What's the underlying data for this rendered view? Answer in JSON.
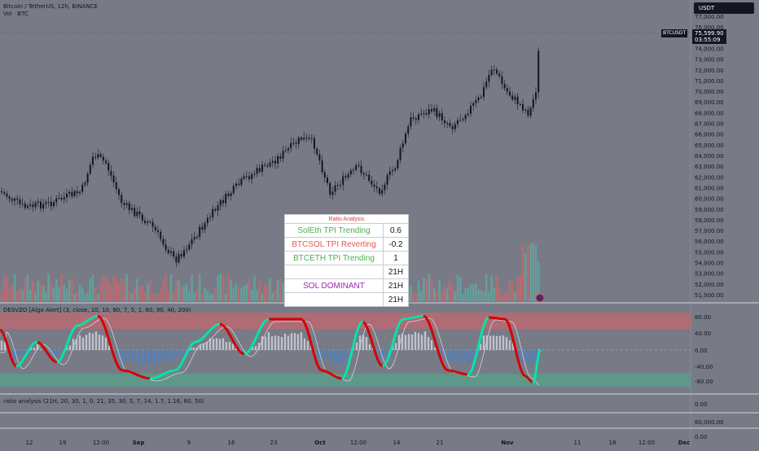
{
  "symbol_title": "Bitcoin / TetherUS, 12h, BINANCE",
  "volume_title": "Vol · BTC",
  "currency_button": "USDT",
  "price_tag": {
    "symbol": "BTCUSDT",
    "price": "75,599.90",
    "countdown": "03:55:09"
  },
  "price_axis": [
    "77,000.00",
    "76,000.00",
    "74,000.00",
    "73,000.00",
    "72,000.00",
    "71,000.00",
    "70,000.00",
    "69,000.00",
    "68,000.00",
    "67,000.00",
    "66,000.00",
    "65,000.00",
    "64,000.00",
    "63,000.00",
    "62,000.00",
    "61,000.00",
    "60,000.00",
    "59,000.00",
    "58,000.00",
    "57,000.00",
    "56,000.00",
    "55,000.00",
    "54,000.00",
    "53,000.00",
    "52,000.00",
    "51,000.00"
  ],
  "oscillator_title": "DESVZO [Algo Alert] (3, close, 10, 10, 80, 7, 5, 1, 60, 90, 40, 200)",
  "oscillator_axis": [
    "80.00",
    "40.00",
    "0.00",
    "-40.00",
    "-80.00"
  ],
  "ratio_pane_title": "ratio analysis (21H, 20, 30, 1, 0, 21, 35, 30, 5, 7, 14, 1.7, 1.16, 80, 50)",
  "ratio_pane_axis": [
    "0.00",
    "60,000.00",
    "0.00"
  ],
  "time_axis": [
    "12",
    "19",
    "12:00",
    "Sep",
    "9",
    "16",
    "23",
    "Oct",
    "12:00",
    "14",
    "21",
    "Nov",
    "11",
    "18",
    "12:00",
    "Dec"
  ],
  "ratio_table": {
    "caption": "Ratio Analysis",
    "rows": [
      {
        "label": "SolEth TPI Trending",
        "value": "0.6",
        "color": "#4caf50"
      },
      {
        "label": "BTCSOL TPI Reverting",
        "value": "-0.2",
        "color": "#ef5350"
      },
      {
        "label": "BTCETH TPI Trending",
        "value": "1",
        "color": "#4caf50"
      },
      {
        "label": "",
        "value": "21H",
        "color": "#131722"
      },
      {
        "label": "SOL DOMINANT",
        "value": "21H",
        "color": "#9c27b0"
      },
      {
        "label": "",
        "value": "21H",
        "color": "#131722"
      }
    ]
  },
  "colors": {
    "up": "#26a69a",
    "down": "#ef5350",
    "candle": "#131722",
    "osc_up": "#00e6a8",
    "osc_down": "#d50000",
    "ob_zone": "#b56a73",
    "os_zone": "#5c9a8a"
  }
}
